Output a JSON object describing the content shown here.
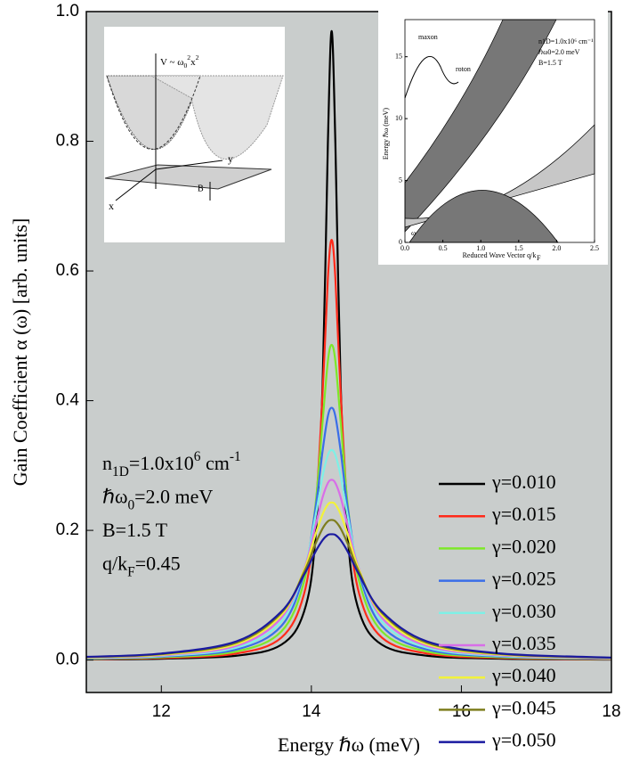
{
  "chart_data": {
    "type": "line",
    "xlabel": "Energy ℏω (meV)",
    "ylabel": "Gain Coefficient α (ω) [arb. units]",
    "xlim": [
      11,
      18
    ],
    "ylim": [
      -0.05,
      1.0
    ],
    "xticks": [
      12,
      14,
      16,
      18
    ],
    "yticks": [
      {
        "value": 0,
        "label": "0.0"
      },
      0.2,
      0.4,
      0.6,
      0.8,
      {
        "value": 1,
        "label": "1.0"
      }
    ],
    "x": [
      11,
      12,
      13,
      13.6,
      13.9,
      14.05,
      14.15,
      14.22,
      14.27,
      14.32,
      14.39,
      14.49,
      14.64,
      14.94,
      15.54,
      16.54,
      18
    ],
    "series": [
      {
        "name": "γ=0.010",
        "color": "#000000",
        "values": [
          0.001,
          0.0021,
          0.0067,
          0.0237,
          0.0738,
          0.183,
          0.427,
          0.797,
          0.97,
          0.797,
          0.427,
          0.183,
          0.0738,
          0.0237,
          0.0067,
          0.0021,
          0.0008
        ]
      },
      {
        "name": "γ=0.015",
        "color": "#ff2a1a",
        "values": [
          0.0015,
          0.0032,
          0.01,
          0.0346,
          0.101,
          0.222,
          0.413,
          0.589,
          0.648,
          0.589,
          0.413,
          0.222,
          0.101,
          0.0346,
          0.01,
          0.0032,
          0.0012
        ]
      },
      {
        "name": "γ=0.020",
        "color": "#7ee82a",
        "values": [
          0.002,
          0.0042,
          0.0132,
          0.0442,
          0.12,
          0.234,
          0.368,
          0.461,
          0.486,
          0.461,
          0.368,
          0.234,
          0.12,
          0.0442,
          0.0132,
          0.0042,
          0.0016
        ]
      },
      {
        "name": "γ=0.025",
        "color": "#3a6ee8",
        "values": [
          0.0025,
          0.0052,
          0.0162,
          0.0526,
          0.132,
          0.23,
          0.323,
          0.376,
          0.389,
          0.376,
          0.323,
          0.23,
          0.132,
          0.0526,
          0.0162,
          0.0052,
          0.002
        ]
      },
      {
        "name": "γ=0.030",
        "color": "#7ff0e6",
        "values": [
          0.003,
          0.0062,
          0.0191,
          0.0595,
          0.138,
          0.219,
          0.284,
          0.316,
          0.324,
          0.316,
          0.284,
          0.219,
          0.138,
          0.0595,
          0.0191,
          0.0062,
          0.0023
        ]
      },
      {
        "name": "γ=0.035",
        "color": "#d86ee8",
        "values": [
          0.0035,
          0.0072,
          0.0218,
          0.0651,
          0.139,
          0.205,
          0.251,
          0.273,
          0.278,
          0.273,
          0.251,
          0.205,
          0.139,
          0.0651,
          0.0218,
          0.0072,
          0.0027
        ]
      },
      {
        "name": "γ=0.040",
        "color": "#f2f23a",
        "values": [
          0.004,
          0.0082,
          0.0244,
          0.0694,
          0.138,
          0.192,
          0.225,
          0.24,
          0.243,
          0.24,
          0.225,
          0.192,
          0.138,
          0.0694,
          0.0244,
          0.0082,
          0.0031
        ]
      },
      {
        "name": "γ=0.045",
        "color": "#7e7e1e",
        "values": [
          0.0045,
          0.0091,
          0.0267,
          0.0726,
          0.135,
          0.178,
          0.203,
          0.214,
          0.216,
          0.214,
          0.203,
          0.178,
          0.135,
          0.0726,
          0.0267,
          0.0091,
          0.0035
        ]
      },
      {
        "name": "γ=0.050",
        "color": "#1a1aa0",
        "values": [
          0.005,
          0.01,
          0.0288,
          0.0748,
          0.131,
          0.166,
          0.185,
          0.193,
          0.194,
          0.193,
          0.185,
          0.166,
          0.131,
          0.0748,
          0.0288,
          0.01,
          0.0038
        ]
      }
    ],
    "annotations": [
      [
        {
          "text": "n"
        },
        {
          "text": "1D",
          "script": "sub"
        },
        {
          "text": "=1.0x10"
        },
        {
          "text": "6",
          "script": "sup"
        },
        {
          "text": " cm"
        },
        {
          "text": "-1",
          "script": "sup"
        }
      ],
      [
        {
          "text": "ℏω"
        },
        {
          "text": "0",
          "script": "sub"
        },
        {
          "text": "=2.0 meV"
        }
      ],
      [
        {
          "text": "B=1.5 T"
        }
      ],
      [
        {
          "text": "q/k"
        },
        {
          "text": "F",
          "script": "sub"
        },
        {
          "text": "=0.45"
        }
      ]
    ],
    "inset_left": {
      "potential": [
        {
          "text": "V ~ ω"
        },
        {
          "text": "0",
          "script": "sub"
        },
        {
          "text": "2",
          "script": "sup"
        },
        {
          "text": "x"
        },
        {
          "text": "2",
          "script": "sup"
        }
      ],
      "y_axis": "y",
      "x_axis": "x",
      "field": "B"
    },
    "inset_right": {
      "xlabel": "Reduced Wave Vector q/k",
      "xlabel_sub": "F",
      "ylabel": "Energy ℏω (meV)",
      "xlim": [
        0,
        2.5
      ],
      "ylim": [
        0,
        18
      ],
      "xticks": [
        {
          "value": 0,
          "label": "0.0"
        },
        0.5,
        {
          "value": 1,
          "label": "1.0"
        },
        1.5,
        {
          "value": 2,
          "label": "2.0"
        },
        2.5
      ],
      "yticks": [
        0,
        5,
        10,
        15
      ],
      "notes": [
        "n1D=1.0x10⁶ cm⁻¹",
        "ℏω0=2.0 meV",
        "B=1.5 T"
      ],
      "maxon": "maxon",
      "roton": "roton",
      "plasmon": "ω"
    }
  }
}
